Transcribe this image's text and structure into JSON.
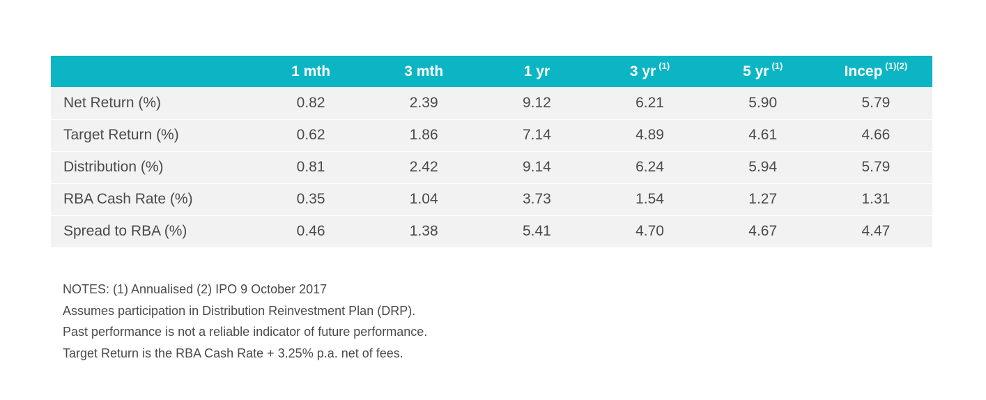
{
  "table": {
    "headers": [
      {
        "label": "",
        "sup": ""
      },
      {
        "label": "1 mth",
        "sup": ""
      },
      {
        "label": "3 mth",
        "sup": ""
      },
      {
        "label": "1 yr",
        "sup": ""
      },
      {
        "label": "3 yr",
        "sup": "(1)"
      },
      {
        "label": "5 yr",
        "sup": "(1)"
      },
      {
        "label": "Incep",
        "sup": "(1)(2)"
      }
    ],
    "rows": [
      {
        "label": "Net Return (%)",
        "values": [
          "0.82",
          "2.39",
          "9.12",
          "6.21",
          "5.90",
          "5.79"
        ]
      },
      {
        "label": "Target Return (%)",
        "values": [
          "0.62",
          "1.86",
          "7.14",
          "4.89",
          "4.61",
          "4.66"
        ]
      },
      {
        "label": "Distribution (%)",
        "values": [
          "0.81",
          "2.42",
          "9.14",
          "6.24",
          "5.94",
          "5.79"
        ]
      },
      {
        "label": "RBA Cash Rate (%)",
        "values": [
          "0.35",
          "1.04",
          "3.73",
          "1.54",
          "1.27",
          "1.31"
        ]
      },
      {
        "label": "Spread to RBA (%)",
        "values": [
          "0.46",
          "1.38",
          "5.41",
          "4.70",
          "4.67",
          "4.47"
        ]
      }
    ]
  },
  "notes": [
    "NOTES: (1) Annualised (2) IPO 9 October 2017",
    "Assumes participation in Distribution Reinvestment Plan (DRP).",
    "Past performance is not a reliable indicator of future performance.",
    "Target Return is the RBA Cash Rate + 3.25% p.a. net of fees."
  ],
  "colors": {
    "header_bg": "#0bb5c4",
    "row_bg": "#f2f2f2",
    "text": "#4a4a4a"
  }
}
